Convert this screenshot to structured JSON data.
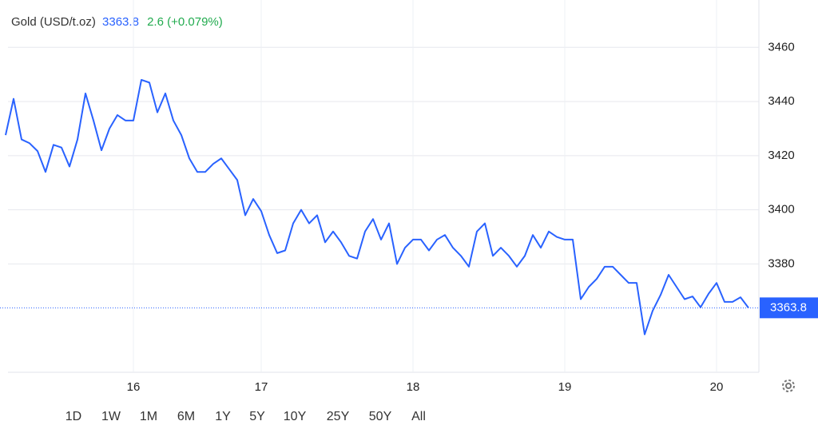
{
  "header": {
    "title": "Gold (USD/t.oz)",
    "price": 3363.8,
    "change_label": "2.6 (+0.079%)"
  },
  "chart_data": {
    "type": "line",
    "categories": [
      null,
      null,
      null,
      null,
      null,
      null,
      null,
      null,
      null,
      null,
      null,
      null,
      null,
      null,
      null,
      null,
      "16",
      null,
      null,
      null,
      null,
      null,
      null,
      null,
      null,
      null,
      null,
      null,
      null,
      null,
      null,
      null,
      "17",
      null,
      null,
      null,
      null,
      null,
      null,
      null,
      null,
      null,
      null,
      null,
      null,
      null,
      null,
      null,
      null,
      null,
      null,
      "18",
      null,
      null,
      null,
      null,
      null,
      null,
      null,
      null,
      null,
      null,
      null,
      null,
      null,
      null,
      null,
      null,
      null,
      null,
      "19",
      null,
      null,
      null,
      null,
      null,
      null,
      null,
      null,
      null,
      null,
      null,
      null,
      null,
      null,
      null,
      null,
      null,
      null,
      "20",
      null,
      null,
      null,
      null
    ],
    "series": [
      {
        "name": "Gold",
        "color": "#2962ff",
        "values": [
          3427.6,
          3441,
          3426,
          3424.6,
          3421.7,
          3414,
          3424,
          3423,
          3416,
          3426,
          3443,
          3433,
          3422,
          3430,
          3435,
          3433,
          3433,
          3448,
          3447,
          3436,
          3443,
          3433,
          3427.6,
          3419,
          3414,
          3414,
          3417,
          3419,
          3415,
          3411,
          3398,
          3404,
          3399.5,
          3390.7,
          3384,
          3385,
          3395,
          3400,
          3395,
          3398,
          3388,
          3392,
          3388,
          3383,
          3382,
          3392,
          3396.6,
          3389,
          3395,
          3380,
          3386,
          3389,
          3389,
          3385,
          3389,
          3390.7,
          3386,
          3383,
          3379,
          3392,
          3395,
          3383,
          3386,
          3383,
          3379,
          3383,
          3390.7,
          3386,
          3392,
          3390,
          3389,
          3389,
          3367,
          3371.5,
          3374.5,
          3379,
          3379,
          3376,
          3373,
          3373,
          3354,
          3362.7,
          3368.6,
          3376,
          3371.5,
          3367,
          3368,
          3364,
          3369,
          3373,
          3366,
          3366,
          3367.7,
          3363.8
        ]
      }
    ],
    "ylim": [
      3340,
      3477.5
    ],
    "yticks": [
      3380,
      3400,
      3420,
      3440,
      3460
    ],
    "grid": true
  },
  "ranges": [
    "1D",
    "1W",
    "1M",
    "6M",
    "1Y",
    "5Y",
    "10Y",
    "25Y",
    "50Y",
    "All"
  ],
  "active_range": "1W"
}
